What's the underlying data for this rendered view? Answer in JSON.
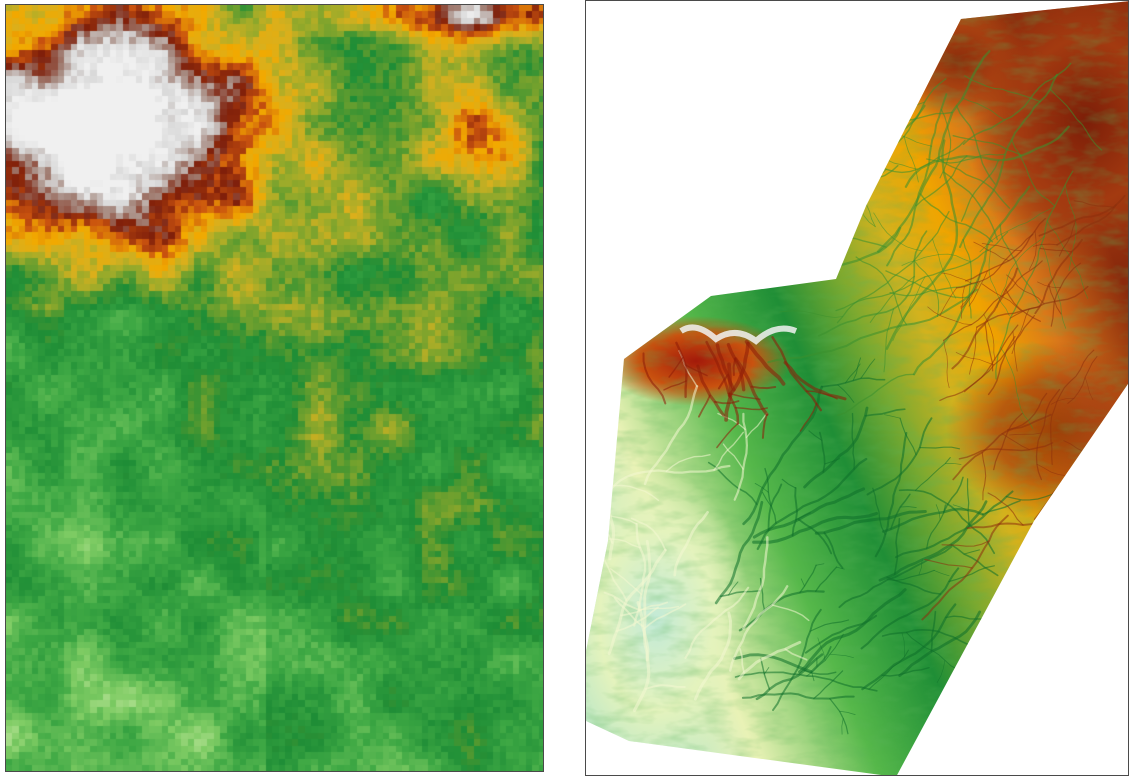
{
  "figure": {
    "panels": [
      {
        "id": "left",
        "content": "pixelated-elevation-raster"
      },
      {
        "id": "right",
        "content": "high-resolution-elevation-raster"
      }
    ]
  },
  "colors": {
    "panel_border": "#4a4a4a",
    "elevation_ramp": [
      "#bfe8c0",
      "#f3f2b6",
      "#b9e39a",
      "#4fb449",
      "#1f8f33",
      "#7ea82c",
      "#d4b31f",
      "#f2a900",
      "#e0851a",
      "#b3501e",
      "#7f1f0a",
      "#a5877d",
      "#d8d8d8",
      "#f2f2f2"
    ]
  }
}
